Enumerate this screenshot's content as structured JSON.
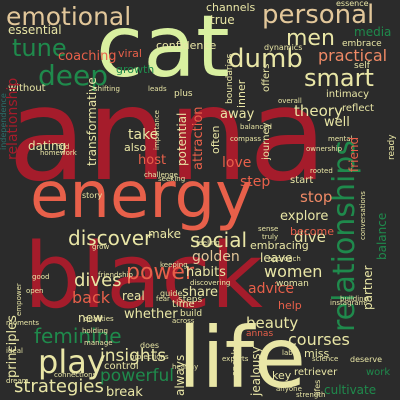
{
  "colors": {
    "background": "#2b2b2b",
    "crimson": "#a51c2b",
    "cream": "#e9e6a6",
    "lime": "#d9f0a0",
    "orange": "#e8604a",
    "salmon": "#f08a66",
    "green": "#1f8a4c",
    "teal": "#2a6f6a",
    "sand": "#e2c79a"
  },
  "words": {
    "anna": "anna",
    "black": "black",
    "cat": "cat",
    "energy": "energy",
    "life": "life",
    "relationships": "relationships",
    "emotional": "emotional",
    "personal": "personal",
    "deep": "deep",
    "tune": "tune",
    "dumb": "dumb",
    "smart": "smart",
    "men": "men",
    "practical": "practical",
    "power": "power",
    "social": "social",
    "discover": "discover",
    "play": "play",
    "feminine": "feminine",
    "insights": "insights",
    "strategies": "strategies",
    "powerful": "powerful",
    "courses": "courses",
    "women": "women",
    "dives": "dives",
    "back": "back",
    "beauty": "beauty",
    "advice": "advice",
    "whether": "whether",
    "share": "share",
    "friend": "friend",
    "balance": "balance",
    "partner": "partner",
    "step": "step",
    "stop": "stop",
    "become": "become",
    "dive": "dive",
    "explore": "explore",
    "leave": "leave",
    "love": "love",
    "host": "host",
    "take": "take",
    "theory": "theory",
    "away": "away",
    "well": "well",
    "golden": "golden",
    "habits": "habits",
    "make": "make",
    "real": "real",
    "coaching": "coaching",
    "essential": "essential",
    "confidence": "confidence",
    "viral": "viral",
    "growth": "growth",
    "channels": "channels",
    "true": "true",
    "media": "media",
    "embrace": "embrace",
    "intimacy": "intimacy",
    "reflect": "reflect",
    "dating": "dating",
    "also": "also",
    "relationship": "relationship",
    "potential": "potential",
    "attraction": "attraction",
    "often": "often",
    "without": "without",
    "transformative": "transformative",
    "principles": "principles",
    "new": "new",
    "control": "control",
    "break": "break",
    "always": "always",
    "jealousy": "jealousy",
    "key": "key",
    "miss": "miss",
    "cultivate": "cultivate",
    "retriever": "retriever",
    "work": "work",
    "deserve": "deserve",
    "help": "help",
    "time": "time",
    "build": "build",
    "steps": "steps",
    "embracing": "embracing",
    "start": "start",
    "inner": "inner",
    "woman": "woman",
    "speak": "speak",
    "self": "self",
    "offers": "offers",
    "plus": "plus",
    "guide": "guide",
    "story": "story",
    "leads": "leads",
    "journey": "journey",
    "challenge": "challenge",
    "essence": "essence",
    "dynamics": "dynamics",
    "boundaries": "boundaries",
    "annas": "annas",
    "ready": "ready",
    "friendship": "friendship",
    "connections": "connections",
    "projections": "projections",
    "science": "science",
    "strength": "strength",
    "anyone": "anyone",
    "balanced": "balanced",
    "feeling": "feeling",
    "label": "label",
    "chart": "chart",
    "ownership": "ownership",
    "good": "good",
    "qualities": "qualities",
    "holding": "holding",
    "manage": "manage",
    "find": "find",
    "homework": "homework",
    "sense": "sense",
    "truly": "truly",
    "compass": "compass",
    "does": "does",
    "shifting": "shifting",
    "experts": "experts",
    "seeking": "seeking",
    "rooted": "rooted",
    "mental": "mental",
    "conversations": "conversations",
    "independence": "independence",
    "open": "open",
    "across": "across",
    "approach": "approach",
    "importance": "importance",
    "building": "building",
    "dream": "dream",
    "lifes": "lifes",
    "moments": "moments",
    "ideal": "ideal",
    "fear": "fear",
    "healthy": "healthy",
    "grow": "grow",
    "overall": "overall",
    "keeping": "keeping",
    "discovering": "discovering",
    "empower": "empower",
    "instagram": "instagram"
  }
}
